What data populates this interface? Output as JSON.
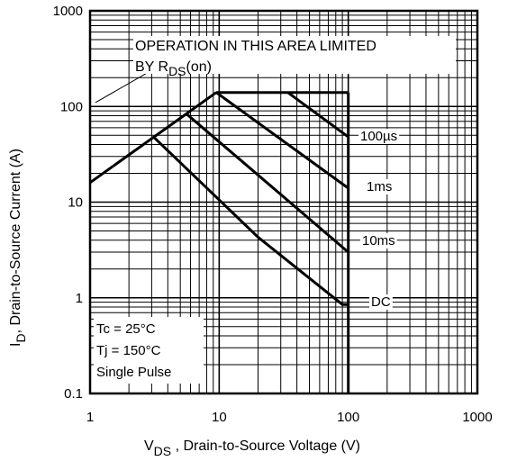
{
  "chart_data": {
    "type": "line",
    "xscale": "log",
    "yscale": "log",
    "xlim": [
      1,
      1000
    ],
    "ylim": [
      0.1,
      1000
    ],
    "x_ticks": [
      "1",
      "10",
      "100",
      "1000"
    ],
    "y_ticks": [
      "1000",
      "100",
      "10",
      "1",
      "0.1"
    ],
    "grid": true,
    "xlabel": {
      "main": "V",
      "sub": "DS",
      "rest": " , Drain-to-Source Voltage (V)"
    },
    "ylabel": {
      "main": "I",
      "sub": "D",
      "rest": ", Drain-to-Source Current (A)"
    },
    "annotations": {
      "limit_line1": "OPERATION IN THIS AREA LIMITED",
      "limit_line2_prefix": "BY R",
      "limit_line2_sub": "DS",
      "limit_line2_suffix": "(on)",
      "conditions": [
        "Tc = 25°C",
        "Tj = 150°C",
        "Single Pulse"
      ]
    },
    "boundary": {
      "current_limit_A": 140,
      "voltage_limit_V": 100
    },
    "series": [
      {
        "name": "100µs",
        "points": [
          [
            1,
            16
          ],
          [
            9.5,
            140
          ],
          [
            100,
            140
          ]
        ],
        "limit_start": [
          34,
          140
        ],
        "limit_end": [
          100,
          48
        ]
      },
      {
        "name": "1ms",
        "points": [
          [
            9.5,
            140
          ],
          [
            100,
            14
          ]
        ]
      },
      {
        "name": "10ms",
        "points": [
          [
            5.5,
            85
          ],
          [
            100,
            3
          ]
        ]
      },
      {
        "name": "DC",
        "points": [
          [
            3.1,
            48
          ],
          [
            20,
            4.3
          ],
          [
            90,
            0.85
          ],
          [
            100,
            0.85
          ]
        ]
      }
    ],
    "rds_on_line": [
      [
        1,
        16
      ],
      [
        9.5,
        140
      ]
    ],
    "pointer_line": [
      [
        1.1,
        110
      ],
      [
        5.5,
        380
      ]
    ]
  }
}
